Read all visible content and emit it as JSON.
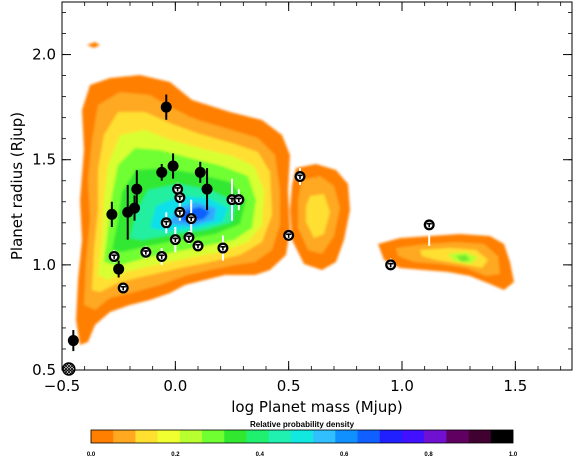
{
  "chart_data": {
    "type": "scatter",
    "xlabel": "log Planet mass (Mjup)",
    "ylabel": "Planet radius (Rjup)",
    "xlim": [
      -0.5,
      1.75
    ],
    "ylim": [
      0.5,
      2.25
    ],
    "xticks": [
      -0.5,
      0.0,
      0.5,
      1.0,
      1.5
    ],
    "xtick_labels": [
      "−0.5",
      "0.0",
      "0.5",
      "1.0",
      "1.5"
    ],
    "yticks": [
      0.5,
      1.0,
      1.5,
      2.0
    ],
    "ytick_labels": [
      "0.5",
      "1.0",
      "1.5",
      "2.0"
    ],
    "grid": false,
    "colorbar": {
      "title": "Relative probability density",
      "range": [
        0.0,
        1.0
      ],
      "tick_values": [
        0.0,
        0.2,
        0.4,
        0.6,
        0.8,
        1.0
      ],
      "tick_labels": [
        "0.0",
        "0.2",
        "0.4",
        "0.6",
        "0.8",
        "1.0"
      ],
      "colors": [
        "#ff7f00",
        "#ffa820",
        "#ffe030",
        "#f0ff30",
        "#b8ff30",
        "#70ff30",
        "#30e830",
        "#20f070",
        "#20f0b0",
        "#10e8e0",
        "#30c0ff",
        "#1090ff",
        "#1060ff",
        "#2020ff",
        "#4010ff",
        "#7010d0",
        "#600060",
        "#400030",
        "#000000"
      ]
    },
    "black_points": [
      {
        "x": -0.45,
        "y": 0.64,
        "yerr": 0.05
      },
      {
        "x": -0.28,
        "y": 1.24,
        "yerr": 0.06
      },
      {
        "x": -0.25,
        "y": 0.98,
        "yerr": 0.04
      },
      {
        "x": -0.21,
        "y": 1.25,
        "yerr": 0.13
      },
      {
        "x": -0.18,
        "y": 1.27,
        "yerr": 0.06
      },
      {
        "x": -0.17,
        "y": 1.36,
        "yerr": 0.09
      },
      {
        "x": -0.06,
        "y": 1.44,
        "yerr": 0.04
      },
      {
        "x": -0.04,
        "y": 1.75,
        "yerr": 0.06
      },
      {
        "x": -0.01,
        "y": 1.47,
        "yerr": 0.06
      },
      {
        "x": 0.11,
        "y": 1.44,
        "yerr": 0.05
      },
      {
        "x": 0.14,
        "y": 1.36,
        "yerr": 0.1
      }
    ],
    "symbol_points": [
      {
        "x": -0.27,
        "y": 1.04,
        "yerr": 0.03
      },
      {
        "x": -0.23,
        "y": 0.89,
        "yerr": 0.01
      },
      {
        "x": -0.13,
        "y": 1.06,
        "yerr": 0.03
      },
      {
        "x": -0.06,
        "y": 1.04,
        "yerr": 0.04
      },
      {
        "x": -0.04,
        "y": 1.2,
        "yerr": 0.05
      },
      {
        "x": 0.0,
        "y": 1.12,
        "yerr": 0.06
      },
      {
        "x": 0.01,
        "y": 1.36,
        "yerr": 0.03
      },
      {
        "x": 0.02,
        "y": 1.32,
        "yerr": 0.04
      },
      {
        "x": 0.02,
        "y": 1.25,
        "yerr": 0.04
      },
      {
        "x": 0.06,
        "y": 1.13,
        "yerr": 0.03
      },
      {
        "x": 0.07,
        "y": 1.22,
        "yerr": 0.09
      },
      {
        "x": 0.1,
        "y": 1.09,
        "yerr": 0.02
      },
      {
        "x": 0.21,
        "y": 1.08,
        "yerr": 0.06
      },
      {
        "x": 0.25,
        "y": 1.31,
        "yerr": 0.1
      },
      {
        "x": 0.28,
        "y": 1.31,
        "yerr": 0.05
      },
      {
        "x": 0.5,
        "y": 1.14,
        "yerr": 0.02
      },
      {
        "x": 0.55,
        "y": 1.42,
        "yerr": 0.04
      },
      {
        "x": 0.95,
        "y": 1.0,
        "yerr": 0.03
      },
      {
        "x": 1.12,
        "y": 1.19,
        "yerr": 0.1
      }
    ],
    "hatched_point": {
      "x": -0.47,
      "y": 0.5
    }
  }
}
